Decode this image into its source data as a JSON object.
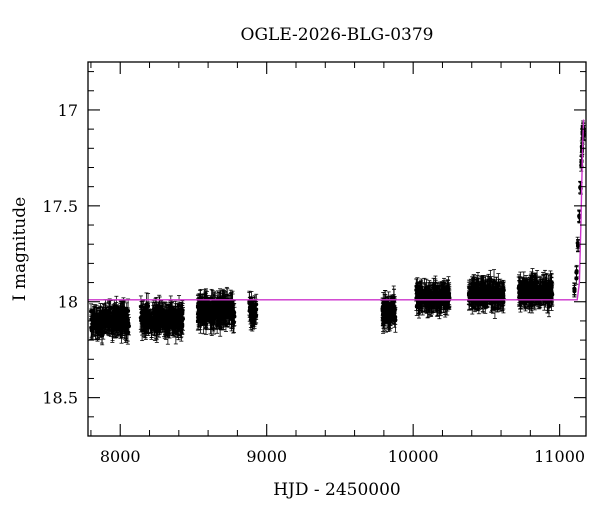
{
  "chart_data": {
    "type": "scatter",
    "title": "OGLE-2026-BLG-0379",
    "xlabel": "HJD - 2450000",
    "ylabel": "I magnitude",
    "xlim": [
      7780,
      11180
    ],
    "ylim": [
      18.7,
      16.75
    ],
    "y_inverted": true,
    "x_ticks": [
      8000,
      9000,
      10000,
      11000
    ],
    "x_tick_labels": [
      "8000",
      "9000",
      "10000",
      "11000"
    ],
    "y_ticks": [
      17,
      17.5,
      18,
      18.5
    ],
    "y_tick_labels": [
      "17",
      "17.5",
      "18",
      "18.5"
    ],
    "grid": false,
    "colors": {
      "points": "#000000",
      "model": "#cc33cc"
    },
    "observing_seasons": [
      {
        "x_range": [
          7800,
          8060
        ],
        "mean_mag": 18.1,
        "scatter": 0.06,
        "error": 0.05
      },
      {
        "x_range": [
          8140,
          8430
        ],
        "mean_mag": 18.09,
        "scatter": 0.06,
        "error": 0.05
      },
      {
        "x_range": [
          8530,
          8780
        ],
        "mean_mag": 18.05,
        "scatter": 0.06,
        "error": 0.05
      },
      {
        "x_range": [
          8880,
          8930
        ],
        "mean_mag": 18.05,
        "scatter": 0.05,
        "error": 0.05
      },
      {
        "x_range": [
          9790,
          9880
        ],
        "mean_mag": 18.05,
        "scatter": 0.06,
        "error": 0.05
      },
      {
        "x_range": [
          10020,
          10250
        ],
        "mean_mag": 17.98,
        "scatter": 0.05,
        "error": 0.05
      },
      {
        "x_range": [
          10380,
          10620
        ],
        "mean_mag": 17.96,
        "scatter": 0.05,
        "error": 0.05
      },
      {
        "x_range": [
          10720,
          10950
        ],
        "mean_mag": 17.95,
        "scatter": 0.05,
        "error": 0.05
      }
    ],
    "rising_points": [
      {
        "x": 11100,
        "y": 17.95
      },
      {
        "x": 11115,
        "y": 17.85
      },
      {
        "x": 11125,
        "y": 17.7
      },
      {
        "x": 11135,
        "y": 17.55
      },
      {
        "x": 11142,
        "y": 17.4
      },
      {
        "x": 11148,
        "y": 17.28
      },
      {
        "x": 11153,
        "y": 17.2
      },
      {
        "x": 11157,
        "y": 17.13
      },
      {
        "x": 11160,
        "y": 17.1
      },
      {
        "x": 11163,
        "y": 17.12
      }
    ],
    "model": {
      "baseline_mag": 17.99,
      "points": [
        {
          "x": 7780,
          "y": 17.99
        },
        {
          "x": 11120,
          "y": 17.99
        },
        {
          "x": 11135,
          "y": 17.9
        },
        {
          "x": 11145,
          "y": 17.6
        },
        {
          "x": 11155,
          "y": 17.25
        },
        {
          "x": 11163,
          "y": 17.05
        }
      ]
    }
  }
}
